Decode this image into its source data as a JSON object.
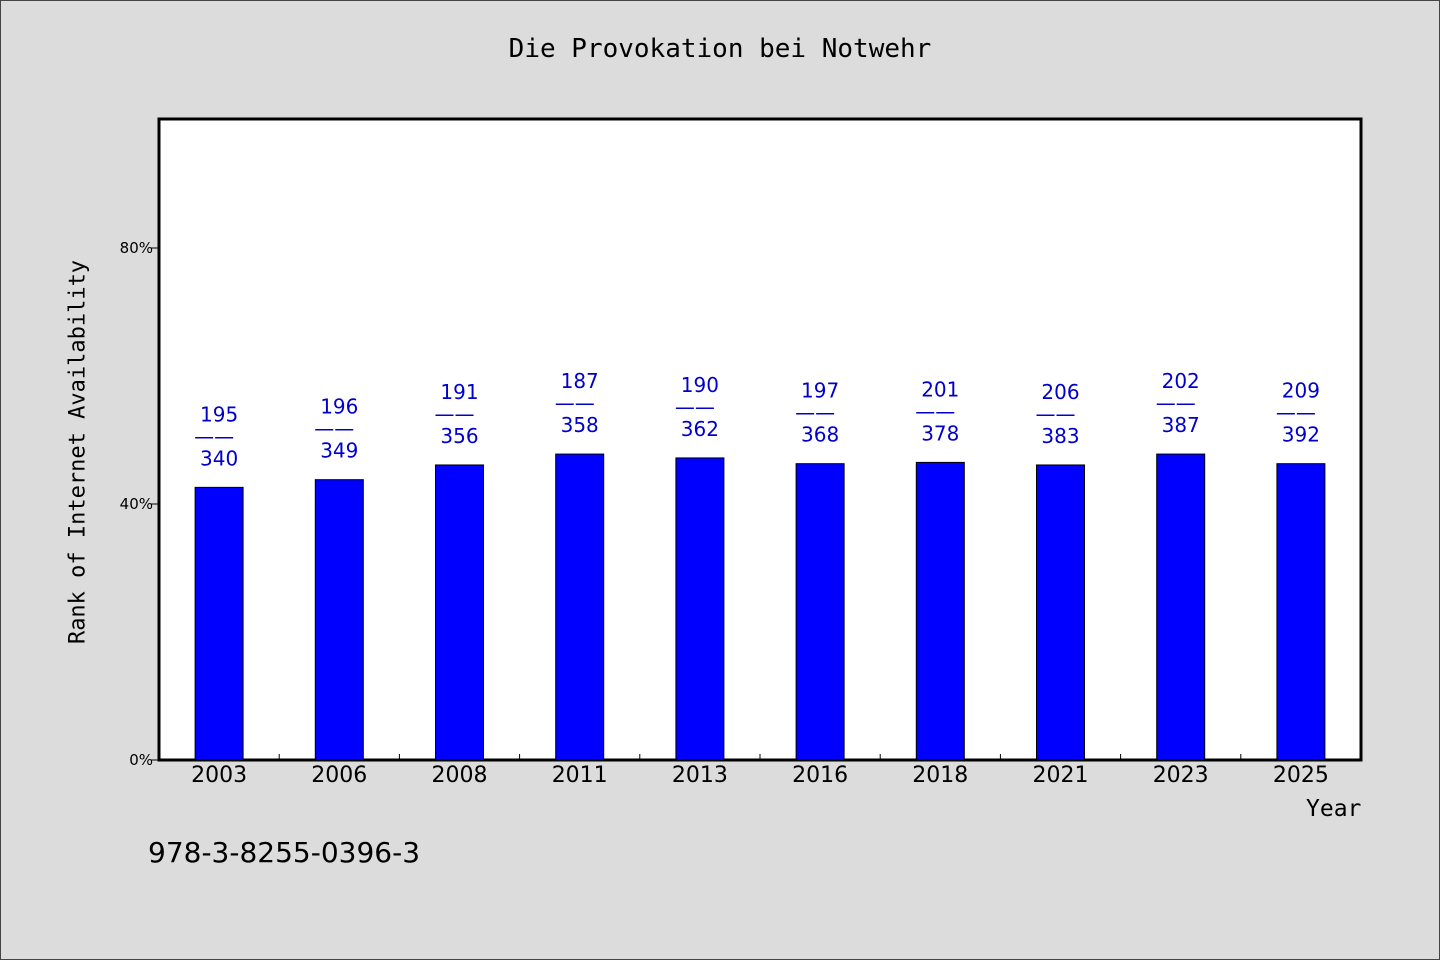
{
  "chart_data": {
    "type": "bar",
    "title": "Die Provokation bei Notwehr",
    "xlabel": "Year",
    "ylabel": "Rank of Internet Availability",
    "categories": [
      "2003",
      "2006",
      "2008",
      "2011",
      "2013",
      "2016",
      "2018",
      "2021",
      "2023",
      "2025"
    ],
    "values": [
      42.6,
      43.8,
      46.1,
      47.8,
      47.2,
      46.3,
      46.5,
      46.1,
      47.8,
      46.3
    ],
    "ylim": [
      0,
      100
    ],
    "yticks": [
      0,
      40,
      80
    ],
    "ytick_labels": [
      "0%",
      "40%",
      "80%"
    ],
    "data_labels": [
      {
        "top": "195",
        "sep": "——",
        "bottom": "340"
      },
      {
        "top": "196",
        "sep": "——",
        "bottom": "349"
      },
      {
        "top": "191",
        "sep": "——",
        "bottom": "356"
      },
      {
        "top": "187",
        "sep": "——",
        "bottom": "358"
      },
      {
        "top": "190",
        "sep": "——",
        "bottom": "362"
      },
      {
        "top": "197",
        "sep": "——",
        "bottom": "368"
      },
      {
        "top": "201",
        "sep": "——",
        "bottom": "378"
      },
      {
        "top": "206",
        "sep": "——",
        "bottom": "383"
      },
      {
        "top": "202",
        "sep": "——",
        "bottom": "387"
      },
      {
        "top": "209",
        "sep": "——",
        "bottom": "392"
      }
    ],
    "bar_color": "#0000ff",
    "label_color": "#0000cc",
    "grid": false,
    "legend": "none"
  },
  "footer_text": "978-3-8255-0396-3"
}
